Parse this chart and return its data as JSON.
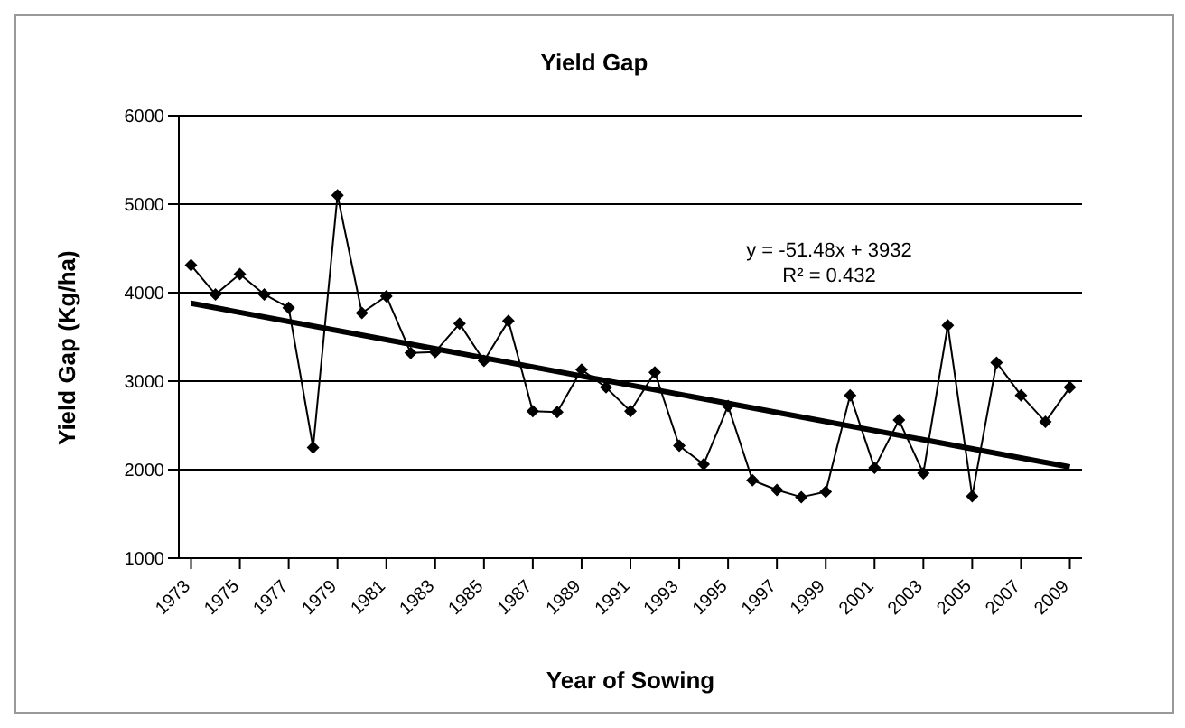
{
  "chart_data": {
    "type": "line",
    "title": "Yield Gap",
    "xlabel": "Year of Sowing",
    "ylabel": "Yield Gap (Kg/ha)",
    "x": [
      1973,
      1974,
      1975,
      1976,
      1977,
      1978,
      1979,
      1980,
      1981,
      1982,
      1983,
      1984,
      1985,
      1986,
      1987,
      1988,
      1989,
      1990,
      1991,
      1992,
      1993,
      1994,
      1995,
      1996,
      1997,
      1998,
      1999,
      2000,
      2001,
      2002,
      2003,
      2004,
      2005,
      2006,
      2007,
      2008,
      2009
    ],
    "series": [
      {
        "color": "#000000",
        "marker": "diamond",
        "values": [
          4310,
          3980,
          4210,
          3980,
          3830,
          2250,
          5100,
          3770,
          3960,
          3320,
          3330,
          3650,
          3230,
          3680,
          2660,
          2650,
          3130,
          2930,
          2660,
          3100,
          2270,
          2060,
          2720,
          1880,
          1770,
          1690,
          1750,
          2840,
          2020,
          2560,
          1960,
          3630,
          1700,
          3210,
          2840,
          2540,
          2930
        ]
      },
      {
        "color": "#000000",
        "marker": "none",
        "x": [
          1973,
          2009
        ],
        "values": [
          3880,
          2030
        ]
      }
    ],
    "xlim": [
      1972.5,
      2009.5
    ],
    "xticks": [
      1973,
      1975,
      1977,
      1979,
      1981,
      1983,
      1985,
      1987,
      1989,
      1991,
      1993,
      1995,
      1997,
      1999,
      2001,
      2003,
      2005,
      2007,
      2009
    ],
    "ylim": [
      1000,
      6000
    ],
    "yticks": [
      1000,
      2000,
      3000,
      4000,
      5000,
      6000
    ],
    "grid": "y",
    "annotations": [
      "y = -51.48x + 3932",
      "R² = 0.432"
    ]
  }
}
